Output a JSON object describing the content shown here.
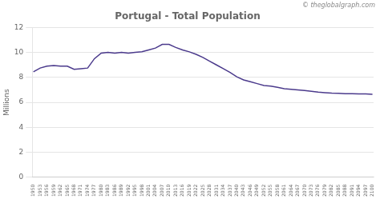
{
  "chart_data": {
    "type": "line",
    "title": "Portugal - Total Population",
    "ylabel": "Millions",
    "annotations": [
      "© theglobalgraph.com"
    ],
    "x": [
      1950,
      1953,
      1956,
      1959,
      1962,
      1965,
      1968,
      1971,
      1974,
      1977,
      1980,
      1983,
      1986,
      1989,
      1992,
      1995,
      1998,
      2001,
      2004,
      2007,
      2010,
      2013,
      2016,
      2019,
      2022,
      2025,
      2028,
      2031,
      2034,
      2037,
      2040,
      2043,
      2046,
      2049,
      2052,
      2055,
      2058,
      2061,
      2064,
      2067,
      2070,
      2073,
      2076,
      2079,
      2082,
      2085,
      2088,
      2091,
      2094,
      2097,
      2100
    ],
    "values": [
      8.45,
      8.75,
      8.9,
      8.95,
      8.9,
      8.9,
      8.65,
      8.7,
      8.75,
      9.5,
      9.95,
      10.0,
      9.95,
      10.0,
      9.95,
      10.0,
      10.05,
      10.2,
      10.35,
      10.65,
      10.65,
      10.4,
      10.2,
      10.05,
      9.85,
      9.6,
      9.3,
      9.0,
      8.7,
      8.4,
      8.05,
      7.8,
      7.65,
      7.5,
      7.35,
      7.3,
      7.2,
      7.1,
      7.05,
      7.0,
      6.95,
      6.88,
      6.82,
      6.78,
      6.74,
      6.72,
      6.7,
      6.69,
      6.68,
      6.67,
      6.65
    ],
    "color": "#4b3a8c",
    "xlim": [
      1949.5,
      2100.5
    ],
    "xticks": [
      1950,
      1953,
      1956,
      1959,
      1962,
      1965,
      1968,
      1971,
      1974,
      1977,
      1980,
      1983,
      1986,
      1989,
      1992,
      1995,
      1998,
      2001,
      2004,
      2007,
      2010,
      2013,
      2016,
      2019,
      2022,
      2025,
      2028,
      2031,
      2034,
      2037,
      2040,
      2043,
      2046,
      2049,
      2052,
      2055,
      2058,
      2061,
      2064,
      2067,
      2070,
      2073,
      2076,
      2079,
      2082,
      2085,
      2088,
      2091,
      2094,
      2097,
      2100
    ],
    "ylim": [
      0,
      12
    ],
    "yticks": [
      0,
      2,
      4,
      6,
      8,
      10,
      12
    ],
    "grid": "y"
  }
}
